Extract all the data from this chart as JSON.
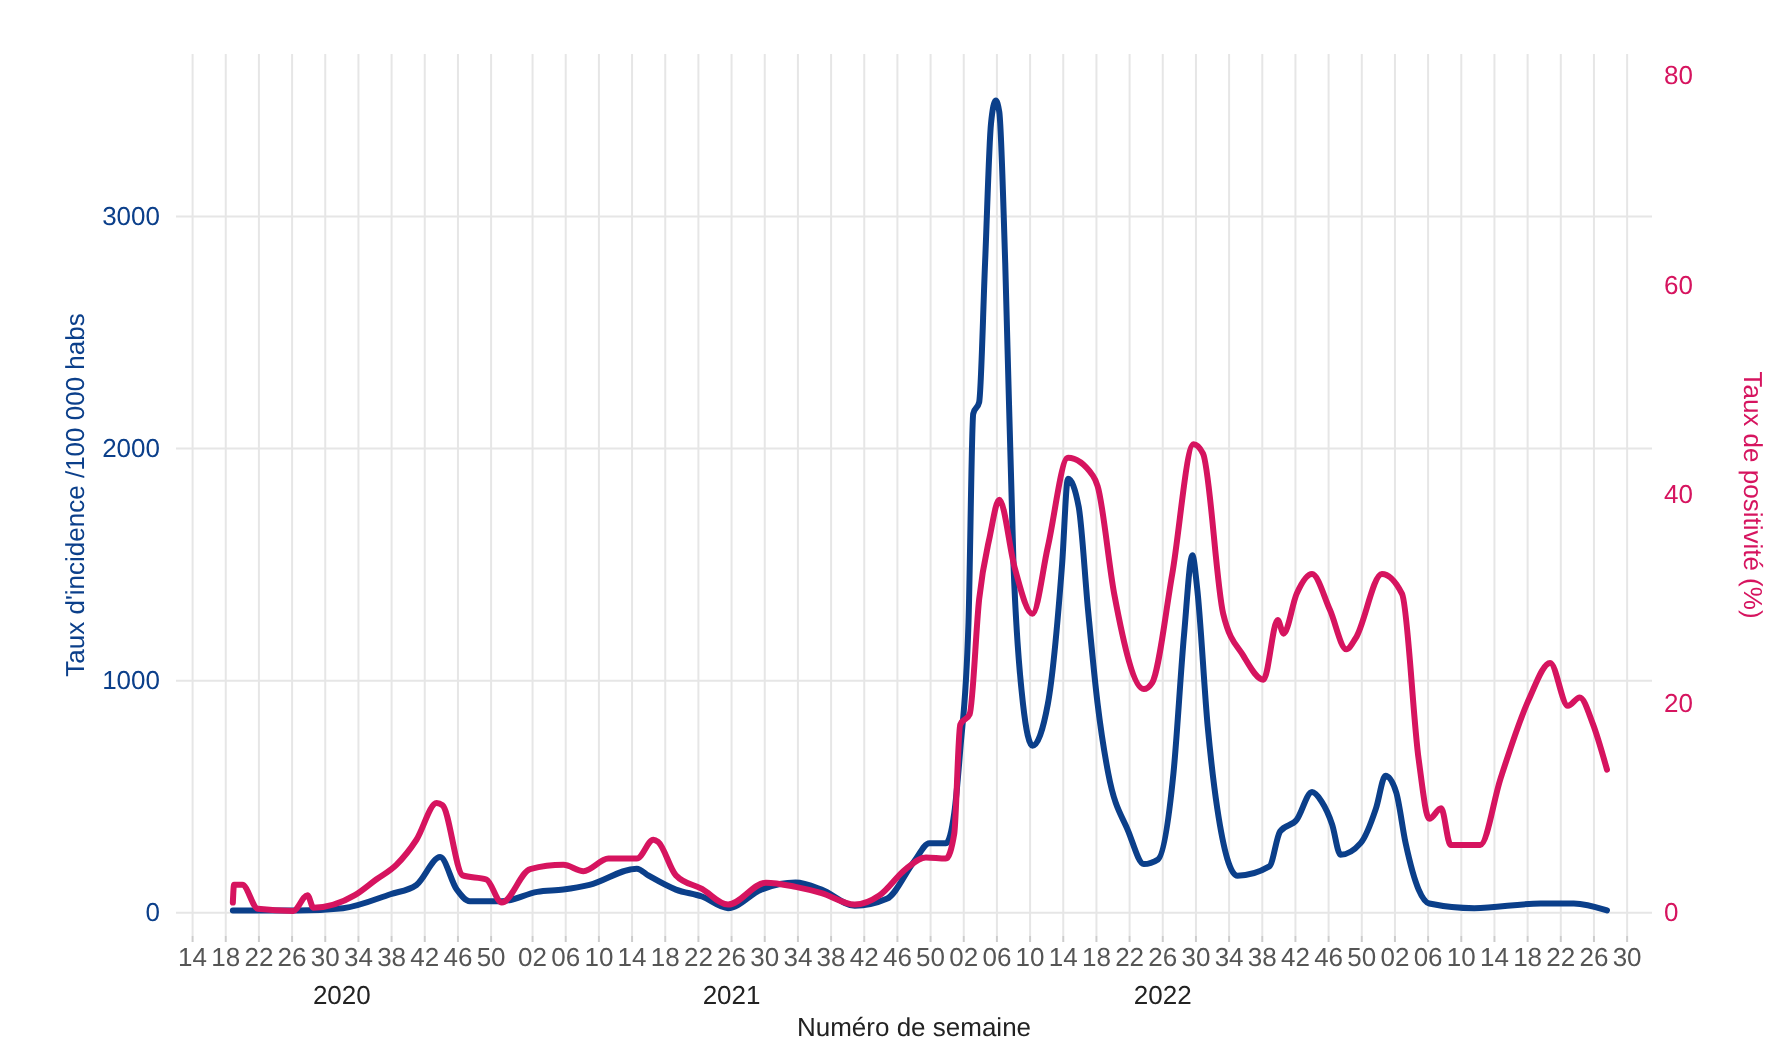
{
  "chart_data": {
    "type": "line",
    "xlabel": "Numéro de semaine",
    "ylabel": "Taux d'incidence /100 000 habs",
    "y2label": "Taux de positivité (%)",
    "xlim": [
      "2020-03-16",
      "2023-08-14"
    ],
    "ylim": [
      -100,
      3700
    ],
    "y2lim": [
      -2.2,
      82.1
    ],
    "xticks": [
      {
        "value": "2020-03-30",
        "label": "14"
      },
      {
        "value": "2020-04-27",
        "label": "18"
      },
      {
        "value": "2020-05-25",
        "label": "22"
      },
      {
        "value": "2020-06-22",
        "label": "26"
      },
      {
        "value": "2020-07-20",
        "label": "30"
      },
      {
        "value": "2020-08-17",
        "label": "34"
      },
      {
        "value": "2020-09-14",
        "label": "38"
      },
      {
        "value": "2020-10-12",
        "label": "42"
      },
      {
        "value": "2020-11-09",
        "label": "46"
      },
      {
        "value": "2020-12-07",
        "label": "50"
      },
      {
        "value": "2021-01-11",
        "label": "02"
      },
      {
        "value": "2021-02-08",
        "label": "06"
      },
      {
        "value": "2021-03-08",
        "label": "10"
      },
      {
        "value": "2021-04-05",
        "label": "14"
      },
      {
        "value": "2021-05-03",
        "label": "18"
      },
      {
        "value": "2021-05-31",
        "label": "22"
      },
      {
        "value": "2021-06-28",
        "label": "26"
      },
      {
        "value": "2021-07-26",
        "label": "30"
      },
      {
        "value": "2021-08-23",
        "label": "34"
      },
      {
        "value": "2021-09-20",
        "label": "38"
      },
      {
        "value": "2021-10-18",
        "label": "42"
      },
      {
        "value": "2021-11-15",
        "label": "46"
      },
      {
        "value": "2021-12-13",
        "label": "50"
      },
      {
        "value": "2022-01-10",
        "label": "02"
      },
      {
        "value": "2022-02-07",
        "label": "06"
      },
      {
        "value": "2022-03-07",
        "label": "10"
      },
      {
        "value": "2022-04-04",
        "label": "14"
      },
      {
        "value": "2022-05-02",
        "label": "18"
      },
      {
        "value": "2022-05-30",
        "label": "22"
      },
      {
        "value": "2022-06-27",
        "label": "26"
      },
      {
        "value": "2022-07-25",
        "label": "30"
      },
      {
        "value": "2022-08-22",
        "label": "34"
      },
      {
        "value": "2022-09-19",
        "label": "38"
      },
      {
        "value": "2022-10-17",
        "label": "42"
      },
      {
        "value": "2022-11-14",
        "label": "46"
      },
      {
        "value": "2022-12-12",
        "label": "50"
      },
      {
        "value": "2023-01-09",
        "label": "02"
      },
      {
        "value": "2023-02-06",
        "label": "06"
      },
      {
        "value": "2023-03-06",
        "label": "10"
      },
      {
        "value": "2023-04-03",
        "label": "14"
      },
      {
        "value": "2023-05-01",
        "label": "18"
      },
      {
        "value": "2023-05-29",
        "label": "22"
      },
      {
        "value": "2023-06-26",
        "label": "26"
      },
      {
        "value": "2023-07-24",
        "label": "30"
      }
    ],
    "yticks": [
      0,
      1000,
      2000,
      3000
    ],
    "y2ticks": [
      0,
      20,
      40,
      60,
      80
    ],
    "grid": true,
    "line_style": "solid",
    "annotations": [
      "2020",
      "2021",
      "2022"
    ],
    "series": [
      {
        "color": "#0b3f8a",
        "x": [
          "2020-05-03",
          "2020-06-27",
          "2020-08-04",
          "2020-09-13",
          "2020-10-05",
          "2020-10-25",
          "2020-11-08",
          "2020-11-19",
          "2020-12-16",
          "2021-01-15",
          "2021-02-06",
          "2021-02-28",
          "2021-04-09",
          "2021-04-19",
          "2021-05-12",
          "2021-06-03",
          "2021-06-25",
          "2021-07-23",
          "2021-08-21",
          "2021-09-12",
          "2021-10-10",
          "2021-11-06",
          "2021-11-29",
          "2021-12-12",
          "2021-12-26",
          "2022-01-02",
          "2022-01-07",
          "2022-01-14",
          "2022-01-18",
          "2022-01-23",
          "2022-01-28",
          "2022-02-02",
          "2022-02-06",
          "2022-02-09",
          "2022-02-14",
          "2022-02-21",
          "2022-03-01",
          "2022-03-09",
          "2022-03-22",
          "2022-04-03",
          "2022-04-08",
          "2022-04-17",
          "2022-04-25",
          "2022-05-03",
          "2022-05-12",
          "2022-05-29",
          "2022-06-11",
          "2022-06-23",
          "2022-07-06",
          "2022-07-15",
          "2022-07-22",
          "2022-07-26",
          "2022-08-04",
          "2022-08-12",
          "2022-08-29",
          "2022-09-25",
          "2022-10-04",
          "2022-10-18",
          "2022-10-31",
          "2022-11-08",
          "2022-11-17",
          "2022-11-24",
          "2022-12-11",
          "2022-12-24",
          "2023-01-01",
          "2023-01-10",
          "2023-01-18",
          "2023-01-29",
          "2023-02-07",
          "2023-03-17",
          "2023-05-12",
          "2023-06-09",
          "2023-07-07"
        ],
        "values": [
          10,
          10,
          20,
          80,
          120,
          240,
          100,
          50,
          50,
          90,
          100,
          120,
          190,
          160,
          100,
          70,
          20,
          100,
          130,
          100,
          30,
          60,
          220,
          300,
          300,
          430,
          700,
          1250,
          2150,
          2200,
          2800,
          3400,
          3500,
          3450,
          2800,
          1500,
          900,
          720,
          900,
          1500,
          1870,
          1750,
          1300,
          900,
          600,
          350,
          210,
          230,
          600,
          1200,
          1540,
          1400,
          800,
          450,
          160,
          200,
          350,
          400,
          520,
          480,
          380,
          250,
          300,
          450,
          590,
          520,
          300,
          100,
          40,
          20,
          40,
          40,
          10
        ]
      },
      {
        "color": "#d6145f",
        "axis": "y2",
        "x": [
          "2020-05-03",
          "2020-05-04",
          "2020-05-11",
          "2020-05-24",
          "2020-06-23",
          "2020-07-05",
          "2020-07-10",
          "2020-08-14",
          "2020-09-01",
          "2020-09-18",
          "2020-10-05",
          "2020-10-22",
          "2020-10-27",
          "2020-11-13",
          "2020-12-03",
          "2020-12-16",
          "2021-01-09",
          "2021-02-06",
          "2021-02-23",
          "2021-03-16",
          "2021-04-09",
          "2021-04-23",
          "2021-04-27",
          "2021-05-12",
          "2021-06-03",
          "2021-06-25",
          "2021-07-27",
          "2021-08-21",
          "2021-09-12",
          "2021-10-10",
          "2021-10-31",
          "2021-11-22",
          "2021-12-09",
          "2021-12-26",
          "2022-01-02",
          "2022-01-07",
          "2022-01-15",
          "2022-01-23",
          "2022-02-01",
          "2022-02-09",
          "2022-02-22",
          "2022-03-09",
          "2022-03-22",
          "2022-04-08",
          "2022-04-29",
          "2022-05-03",
          "2022-05-17",
          "2022-06-11",
          "2022-06-18",
          "2022-07-05",
          "2022-07-23",
          "2022-07-31",
          "2022-08-17",
          "2022-09-03",
          "2022-09-20",
          "2022-10-02",
          "2022-10-07",
          "2022-10-18",
          "2022-10-31",
          "2022-11-15",
          "2022-11-29",
          "2022-12-07",
          "2022-12-29",
          "2023-01-15",
          "2023-01-29",
          "2023-02-07",
          "2023-02-17",
          "2023-02-25",
          "2023-03-22",
          "2023-04-08",
          "2023-05-02",
          "2023-05-20",
          "2023-06-04",
          "2023-06-14",
          "2023-06-25",
          "2023-07-07"
        ],
        "values": [
          1,
          2.7,
          2.7,
          0.4,
          0.2,
          1.7,
          0.5,
          1.7,
          3.2,
          4.6,
          7,
          10.5,
          10.3,
          3.6,
          3.2,
          1,
          4.2,
          4.6,
          4,
          5.2,
          5.2,
          7,
          6.8,
          3.6,
          2.3,
          0.8,
          2.9,
          2.5,
          1.9,
          0.8,
          1.7,
          4.2,
          5.3,
          5.2,
          7.6,
          18,
          19,
          30,
          36,
          39.5,
          33,
          28.6,
          35,
          43.5,
          41.8,
          40.8,
          30.5,
          21.4,
          22,
          32.4,
          44.8,
          43.9,
          28.6,
          24.6,
          22.3,
          28,
          26.7,
          30.5,
          32.4,
          29,
          25.2,
          26.3,
          32.4,
          30.5,
          14.7,
          9,
          10,
          6.5,
          6.5,
          12.8,
          20.4,
          23.9,
          19.8,
          20.6,
          18.1,
          13.7
        ]
      }
    ]
  }
}
